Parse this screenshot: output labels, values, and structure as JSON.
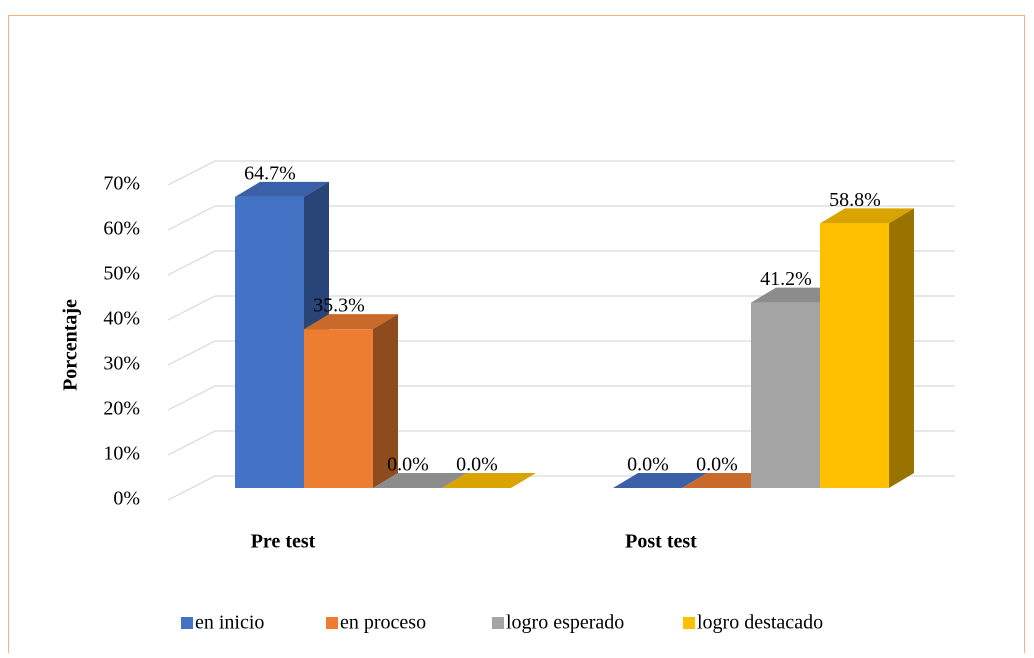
{
  "chart_data": {
    "type": "bar3d",
    "y_label": "Porcentaje",
    "categories": [
      "Pre test",
      "Post test"
    ],
    "series": [
      {
        "name": "en inicio",
        "color": "#4472c4",
        "values": [
          64.7,
          0.0
        ],
        "value_labels": [
          "64.7%",
          "0.0%"
        ]
      },
      {
        "name": "en proceso",
        "color": "#ed7d31",
        "values": [
          35.3,
          0.0
        ],
        "value_labels": [
          "35.3%",
          "0.0%"
        ]
      },
      {
        "name": "logro esperado",
        "color": "#a5a5a5",
        "values": [
          0.0,
          41.2
        ],
        "value_labels": [
          "0.0%",
          "41.2%"
        ]
      },
      {
        "name": "logro destacado",
        "color": "#ffc000",
        "values": [
          0.0,
          58.8
        ],
        "value_labels": [
          "0.0%",
          "58.8%"
        ]
      }
    ],
    "ylim": [
      0,
      70
    ],
    "yticks": [
      {
        "value": 0,
        "label": "0%"
      },
      {
        "value": 10,
        "label": "10%"
      },
      {
        "value": 20,
        "label": "20%"
      },
      {
        "value": 30,
        "label": "30%"
      },
      {
        "value": 40,
        "label": "40%"
      },
      {
        "value": 50,
        "label": "50%"
      },
      {
        "value": 60,
        "label": "60%"
      },
      {
        "value": 70,
        "label": "70%"
      }
    ],
    "grid": true,
    "legend": "bottom"
  }
}
